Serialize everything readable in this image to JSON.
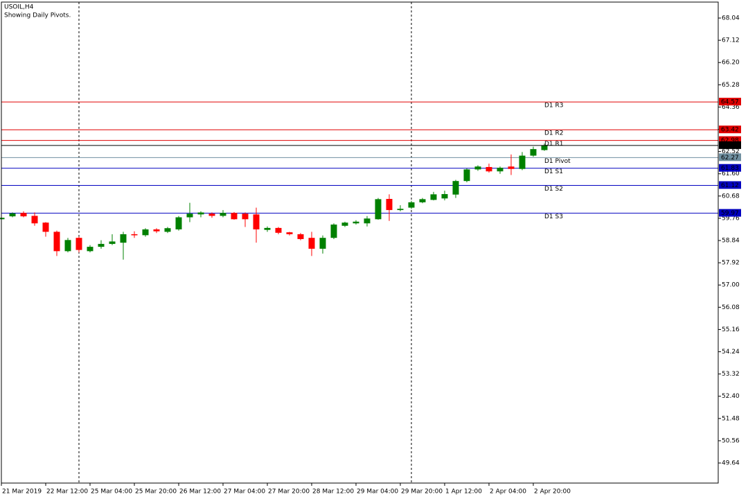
{
  "chart_data": {
    "type": "candlestick",
    "title": "USOIL,H4",
    "subtitle": "Showing Daily Pivots.",
    "categories": [
      "21 Mar 2019",
      null,
      null,
      null,
      "22 Mar 12:00",
      null,
      null,
      null,
      "25 Mar 04:00",
      null,
      null,
      null,
      "25 Mar 20:00",
      null,
      null,
      null,
      "26 Mar 12:00",
      null,
      null,
      null,
      "27 Mar 04:00",
      null,
      null,
      null,
      "27 Mar 20:00",
      null,
      null,
      null,
      "28 Mar 12:00",
      null,
      null,
      null,
      "29 Mar 04:00",
      null,
      null,
      null,
      "29 Mar 20:00",
      null,
      null,
      null,
      "1 Apr 12:00",
      null,
      null,
      null,
      "2 Apr 04:00",
      null,
      null,
      null,
      "2 Apr 20:00",
      null
    ],
    "open": [
      59.72,
      59.84,
      59.98,
      59.86,
      59.58,
      59.2,
      58.4,
      58.95,
      58.4,
      58.58,
      58.7,
      58.75,
      59.1,
      59.06,
      59.3,
      59.2,
      59.3,
      59.8,
      59.92,
      59.95,
      59.86,
      59.98,
      59.95,
      59.92,
      59.28,
      59.36,
      59.18,
      59.1,
      58.95,
      58.5,
      58.95,
      59.45,
      59.55,
      59.55,
      59.72,
      60.56,
      60.1,
      60.2,
      60.42,
      60.52,
      60.58,
      60.74,
      61.3,
      61.78,
      61.88,
      61.7,
      61.9,
      61.8,
      62.35,
      62.58
    ],
    "high": [
      59.8,
      60.0,
      60.05,
      60.0,
      59.6,
      59.25,
      58.95,
      59.0,
      58.65,
      58.85,
      59.1,
      59.2,
      59.22,
      59.35,
      59.35,
      59.4,
      59.85,
      60.4,
      60.05,
      60.0,
      60.1,
      60.02,
      60.0,
      60.2,
      59.42,
      59.4,
      59.2,
      59.15,
      59.2,
      59.05,
      59.55,
      59.62,
      59.68,
      59.85,
      60.6,
      60.75,
      60.3,
      60.48,
      60.6,
      60.85,
      60.9,
      61.35,
      61.82,
      61.95,
      62.02,
      61.9,
      62.4,
      62.5,
      62.72,
      62.85
    ],
    "low": [
      59.7,
      59.8,
      59.8,
      59.45,
      59.0,
      58.2,
      58.35,
      58.35,
      58.35,
      58.5,
      58.65,
      58.05,
      58.95,
      59.0,
      59.15,
      59.15,
      59.25,
      59.6,
      59.8,
      59.78,
      59.8,
      59.7,
      59.4,
      58.75,
      59.2,
      59.1,
      59.05,
      58.85,
      58.2,
      58.3,
      58.9,
      59.4,
      59.5,
      59.42,
      59.7,
      59.65,
      60.05,
      60.15,
      60.38,
      60.5,
      60.5,
      60.6,
      61.25,
      61.72,
      61.65,
      61.6,
      61.55,
      61.75,
      62.3,
      62.55
    ],
    "close": [
      59.78,
      59.96,
      59.84,
      59.55,
      59.2,
      58.4,
      58.86,
      58.45,
      58.58,
      58.7,
      58.8,
      59.1,
      59.06,
      59.3,
      59.22,
      59.35,
      59.8,
      59.95,
      60.0,
      59.86,
      59.98,
      59.72,
      59.72,
      59.3,
      59.36,
      59.16,
      59.1,
      58.9,
      58.5,
      58.95,
      59.5,
      59.58,
      59.62,
      59.75,
      60.55,
      60.1,
      60.15,
      60.42,
      60.55,
      60.75,
      60.76,
      61.3,
      61.78,
      61.9,
      61.7,
      61.85,
      61.8,
      62.35,
      62.62,
      62.77
    ],
    "up_color": "#008000",
    "down_color": "#ff0000",
    "ylim": [
      48.81,
      68.7
    ],
    "yticks": [
      68.04,
      67.12,
      {
        "value": 66.2,
        "label": "66.20"
      },
      65.28,
      64.36,
      63.44,
      62.52,
      {
        "value": 61.6,
        "label": "61.60"
      },
      60.68,
      59.76,
      58.84,
      57.92,
      {
        "value": 57,
        "label": "57.00"
      },
      56.08,
      55.16,
      54.24,
      53.32,
      {
        "value": 52.4,
        "label": "52.40"
      },
      51.48,
      50.56,
      49.64
    ],
    "pivots": [
      {
        "name": "D1 R3",
        "value": 64.57,
        "color": "#e00000"
      },
      {
        "name": "D1 R2",
        "value": 63.42,
        "color": "#e00000"
      },
      {
        "name": "D1 R1",
        "value": 62.98,
        "color": "#e00000"
      },
      {
        "name": "D1 Pivot",
        "value": 62.27,
        "color": "#6f8fa0"
      },
      {
        "name": "D1 S1",
        "value": 61.83,
        "color": "#0000c0"
      },
      {
        "name": "D1 S2",
        "value": 61.12,
        "color": "#0000c0"
      },
      {
        "name": "D1 S3",
        "value": 59.97,
        "color": "#0000c0"
      }
    ]
  }
}
